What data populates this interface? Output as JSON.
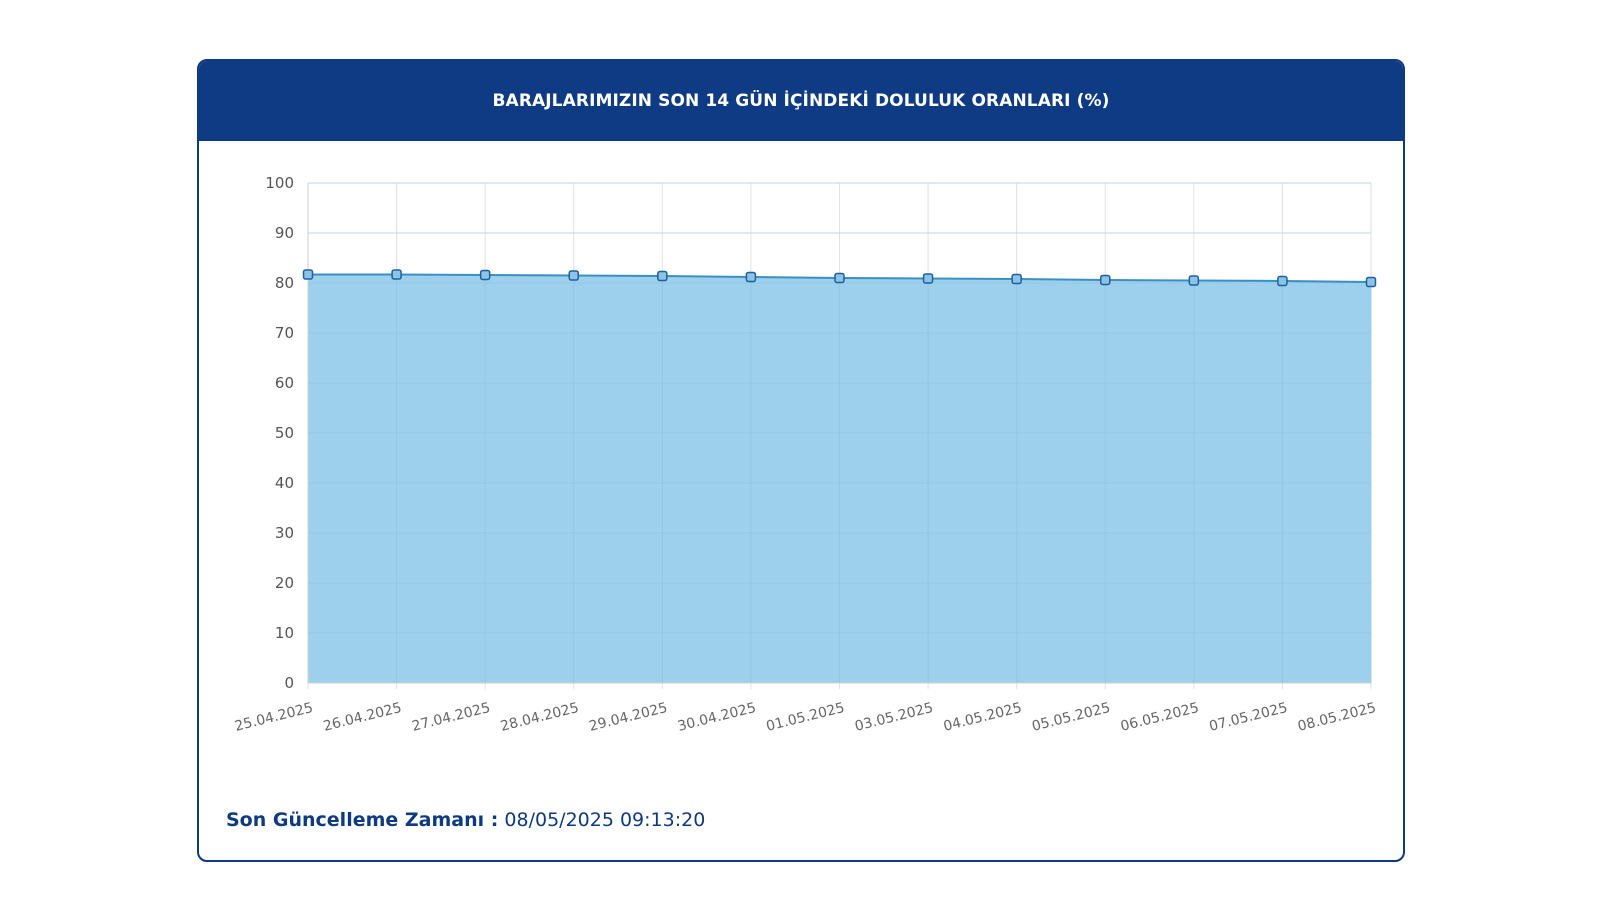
{
  "header": {
    "title": "BARAJLARIMIZIN SON 14 GÜN İÇİNDEKİ DOLULUK ORANLARI (%)"
  },
  "footer": {
    "label": "Son Güncelleme Zamanı :",
    "value": "08/05/2025 09:13:20"
  },
  "colors": {
    "header_bg": "#0f3a84",
    "area_fill": "#9dd0ec",
    "line": "#3a8fc4",
    "marker_stroke": "#1f5f9e",
    "grid": "#e2e2e2"
  },
  "chart_data": {
    "type": "area",
    "categories": [
      "25.04.2025",
      "26.04.2025",
      "27.04.2025",
      "28.04.2025",
      "29.04.2025",
      "30.04.2025",
      "01.05.2025",
      "03.05.2025",
      "04.05.2025",
      "05.05.2025",
      "06.05.2025",
      "07.05.2025",
      "08.05.2025"
    ],
    "series": [
      {
        "values": [
          81.7,
          81.7,
          81.6,
          81.5,
          81.4,
          81.2,
          81.0,
          80.9,
          80.8,
          80.6,
          80.5,
          80.4,
          80.2
        ]
      }
    ],
    "ylim": [
      0,
      100
    ],
    "yticks": [
      0,
      10,
      20,
      30,
      40,
      50,
      60,
      70,
      80,
      90,
      100
    ],
    "grid": true,
    "legend": "none"
  }
}
